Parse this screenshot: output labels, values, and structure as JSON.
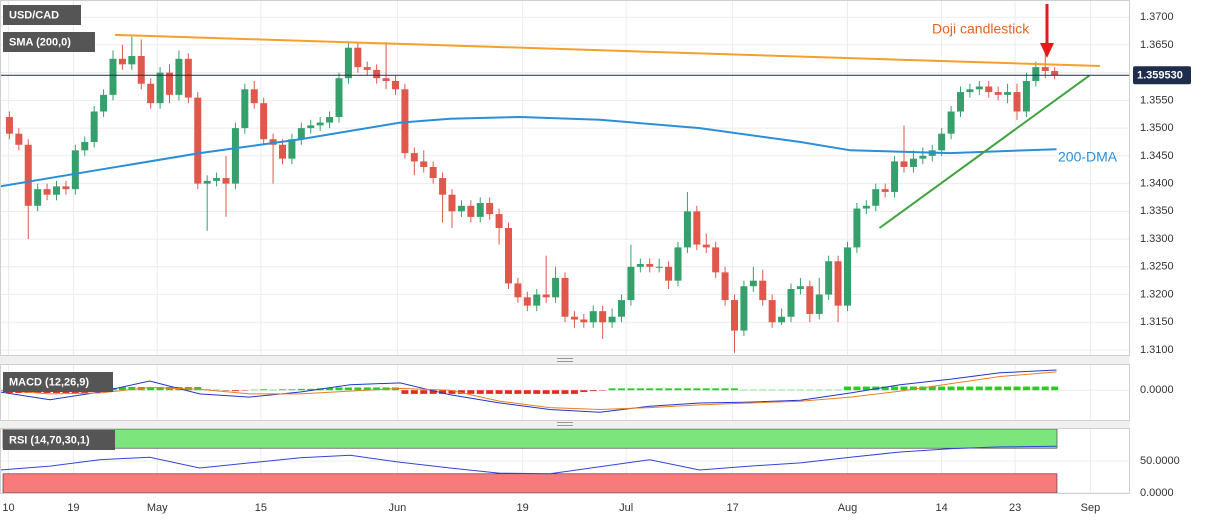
{
  "chart_data": [
    {
      "type": "candlestick",
      "title": "USD/CAD",
      "grid": true,
      "up_color": "#35a06c",
      "down_color": "#e0574b",
      "xlim": [
        -1,
        119
      ],
      "ylim": [
        1.3091,
        1.3731
      ],
      "xticks": [
        {
          "value": -0.1,
          "label": "10"
        },
        {
          "value": 6.8,
          "label": "19"
        },
        {
          "value": 15.7,
          "label": "May"
        },
        {
          "value": 26.7,
          "label": "15"
        },
        {
          "value": 41.2,
          "label": "Jun"
        },
        {
          "value": 54.5,
          "label": "19"
        },
        {
          "value": 65.5,
          "label": "Jul"
        },
        {
          "value": 76.8,
          "label": "17"
        },
        {
          "value": 89,
          "label": "Aug"
        },
        {
          "value": 99,
          "label": "14"
        },
        {
          "value": 106.8,
          "label": "23"
        },
        {
          "value": 114.8,
          "label": "Sep"
        }
      ],
      "yticks": [
        {
          "value": 1.31,
          "label": "1.3100"
        },
        {
          "value": 1.315,
          "label": "1.3150"
        },
        {
          "value": 1.32,
          "label": "1.3200"
        },
        {
          "value": 1.325,
          "label": "1.3250"
        },
        {
          "value": 1.33,
          "label": "1.3300"
        },
        {
          "value": 1.335,
          "label": "1.3350"
        },
        {
          "value": 1.34,
          "label": "1.3400"
        },
        {
          "value": 1.345,
          "label": "1.3450"
        },
        {
          "value": 1.35,
          "label": "1.3500"
        },
        {
          "value": 1.355,
          "label": "1.3550"
        },
        {
          "value": 1.36,
          "label": "1.3600"
        },
        {
          "value": 1.365,
          "label": "1.3650"
        },
        {
          "value": 1.37,
          "label": "1.3700"
        }
      ],
      "open": [
        1.352,
        1.349,
        1.347,
        1.336,
        1.339,
        1.338,
        1.3395,
        1.339,
        1.346,
        1.3475,
        1.353,
        1.356,
        1.3625,
        1.3615,
        1.363,
        1.358,
        1.3545,
        1.36,
        1.356,
        1.3625,
        1.3555,
        1.34,
        1.3405,
        1.341,
        1.34,
        1.35,
        1.357,
        1.3545,
        1.348,
        1.347,
        1.3445,
        1.348,
        1.35,
        1.3505,
        1.351,
        1.352,
        1.359,
        1.3645,
        1.361,
        1.3605,
        1.359,
        1.3585,
        1.357,
        1.3455,
        1.344,
        1.343,
        1.341,
        1.338,
        1.335,
        1.336,
        1.334,
        1.3365,
        1.3345,
        1.332,
        1.322,
        1.3195,
        1.318,
        1.32,
        1.3195,
        1.323,
        1.316,
        1.3155,
        1.315,
        1.317,
        1.315,
        1.316,
        1.319,
        1.325,
        1.3255,
        1.325,
        1.325,
        1.3225,
        1.3285,
        1.335,
        1.329,
        1.3285,
        1.324,
        1.319,
        1.3135,
        1.3215,
        1.3225,
        1.319,
        1.315,
        1.316,
        1.321,
        1.3215,
        1.3165,
        1.32,
        1.326,
        1.318,
        1.3285,
        1.3355,
        1.336,
        1.339,
        1.3385,
        1.344,
        1.343,
        1.3445,
        1.345,
        1.346,
        1.349,
        1.353,
        1.3565,
        1.357,
        1.3575,
        1.3565,
        1.356,
        1.3565,
        1.353,
        1.3585,
        1.361,
        1.3603
      ],
      "high": [
        1.353,
        1.35,
        1.348,
        1.34,
        1.34,
        1.3405,
        1.3405,
        1.347,
        1.3485,
        1.354,
        1.357,
        1.364,
        1.365,
        1.3665,
        1.366,
        1.359,
        1.361,
        1.3615,
        1.364,
        1.3635,
        1.3565,
        1.3415,
        1.342,
        1.345,
        1.351,
        1.358,
        1.3585,
        1.3555,
        1.349,
        1.348,
        1.349,
        1.351,
        1.3515,
        1.352,
        1.353,
        1.36,
        1.3655,
        1.3655,
        1.362,
        1.3615,
        1.3655,
        1.3595,
        1.358,
        1.3465,
        1.346,
        1.344,
        1.342,
        1.339,
        1.337,
        1.337,
        1.3375,
        1.3375,
        1.3355,
        1.333,
        1.323,
        1.3205,
        1.321,
        1.327,
        1.325,
        1.324,
        1.317,
        1.3165,
        1.318,
        1.318,
        1.3175,
        1.32,
        1.329,
        1.3265,
        1.3265,
        1.3265,
        1.326,
        1.3295,
        1.3385,
        1.336,
        1.331,
        1.3295,
        1.325,
        1.32,
        1.3225,
        1.325,
        1.3245,
        1.32,
        1.3175,
        1.322,
        1.323,
        1.3225,
        1.323,
        1.327,
        1.327,
        1.3295,
        1.3365,
        1.337,
        1.34,
        1.34,
        1.345,
        1.3505,
        1.346,
        1.3465,
        1.347,
        1.35,
        1.354,
        1.3575,
        1.358,
        1.3585,
        1.3585,
        1.3575,
        1.358,
        1.358,
        1.36,
        1.362,
        1.364,
        1.361
      ],
      "low": [
        1.348,
        1.346,
        1.33,
        1.335,
        1.337,
        1.337,
        1.338,
        1.338,
        1.345,
        1.3465,
        1.352,
        1.355,
        1.3605,
        1.3605,
        1.357,
        1.3535,
        1.3535,
        1.3545,
        1.355,
        1.3545,
        1.339,
        1.3315,
        1.3395,
        1.334,
        1.339,
        1.349,
        1.3535,
        1.347,
        1.34,
        1.3435,
        1.3435,
        1.347,
        1.349,
        1.3495,
        1.35,
        1.351,
        1.358,
        1.36,
        1.3595,
        1.358,
        1.357,
        1.356,
        1.3445,
        1.3415,
        1.342,
        1.34,
        1.333,
        1.332,
        1.334,
        1.333,
        1.333,
        1.3335,
        1.329,
        1.321,
        1.3185,
        1.317,
        1.317,
        1.3185,
        1.3185,
        1.315,
        1.314,
        1.314,
        1.314,
        1.312,
        1.314,
        1.315,
        1.318,
        1.324,
        1.324,
        1.324,
        1.321,
        1.3215,
        1.3275,
        1.328,
        1.3275,
        1.323,
        1.318,
        1.3095,
        1.3125,
        1.3205,
        1.318,
        1.314,
        1.3145,
        1.315,
        1.32,
        1.315,
        1.3155,
        1.319,
        1.315,
        1.317,
        1.3275,
        1.3345,
        1.335,
        1.3375,
        1.3375,
        1.342,
        1.342,
        1.3435,
        1.344,
        1.345,
        1.348,
        1.352,
        1.3555,
        1.356,
        1.3555,
        1.355,
        1.3545,
        1.3515,
        1.352,
        1.3575,
        1.359,
        1.3588
      ],
      "close": [
        1.349,
        1.347,
        1.336,
        1.339,
        1.338,
        1.3395,
        1.339,
        1.346,
        1.3475,
        1.353,
        1.356,
        1.3625,
        1.3615,
        1.363,
        1.358,
        1.3545,
        1.36,
        1.356,
        1.3625,
        1.3555,
        1.34,
        1.3405,
        1.341,
        1.34,
        1.35,
        1.357,
        1.3545,
        1.348,
        1.347,
        1.3445,
        1.348,
        1.35,
        1.3505,
        1.351,
        1.352,
        1.359,
        1.3645,
        1.361,
        1.3605,
        1.359,
        1.3585,
        1.357,
        1.3455,
        1.344,
        1.343,
        1.341,
        1.338,
        1.335,
        1.336,
        1.334,
        1.3365,
        1.3345,
        1.332,
        1.322,
        1.3195,
        1.318,
        1.32,
        1.3195,
        1.323,
        1.316,
        1.3155,
        1.315,
        1.317,
        1.315,
        1.316,
        1.319,
        1.325,
        1.3255,
        1.325,
        1.325,
        1.3225,
        1.3285,
        1.335,
        1.329,
        1.3285,
        1.324,
        1.319,
        1.3135,
        1.3215,
        1.3225,
        1.319,
        1.315,
        1.316,
        1.321,
        1.3215,
        1.3165,
        1.32,
        1.326,
        1.318,
        1.3285,
        1.3355,
        1.336,
        1.339,
        1.3385,
        1.344,
        1.343,
        1.3445,
        1.345,
        1.346,
        1.349,
        1.353,
        1.3565,
        1.357,
        1.3575,
        1.3565,
        1.356,
        1.3565,
        1.353,
        1.3585,
        1.361,
        1.3603,
        1.35953
      ],
      "overlay": {
        "name": "SMA (200,0)",
        "color": "#2a8fd8",
        "x": [
          -1,
          9.6,
          20.2,
          30.9,
          41.5,
          46.8,
          54.2,
          62.7,
          73.3,
          84,
          89.3,
          99.9,
          111.2
        ],
        "values": [
          1.3395,
          1.3425,
          1.3455,
          1.348,
          1.351,
          1.3517,
          1.352,
          1.3515,
          1.35,
          1.3475,
          1.346,
          1.3455,
          1.3462
        ]
      },
      "trendlines": [
        {
          "color": "#f5a02a",
          "x": [
            11.2,
            115.8
          ],
          "values": [
            1.3668,
            1.3612
          ]
        },
        {
          "color": "#3fa33f",
          "x": [
            92.4,
            114.7
          ],
          "values": [
            1.332,
            1.3595
          ]
        }
      ],
      "last_price": {
        "value": 1.35953,
        "label": "1.359530"
      },
      "annotations": [
        "Doji candlestick",
        "200-DMA"
      ]
    },
    {
      "type": "macd",
      "title": "MACD (12,26,9)",
      "grid": true,
      "xlim": [
        -1,
        119
      ],
      "ylim": [
        -0.0065,
        0.0055
      ],
      "yticks": [
        {
          "value": 0,
          "label": "0.0000"
        }
      ],
      "up_color": "#22d022",
      "down_color": "#e52a1e",
      "histogram": [
        -0.0006,
        -0.0006,
        -0.0006,
        -0.0006,
        -0.0006,
        -0.0006,
        -0.0006,
        -0.0006,
        -0.0006,
        -0.0002,
        0.0002,
        0.0005,
        0.0007,
        0.0007,
        0.0007,
        0.0007,
        0.0007,
        0.0007,
        0.0007,
        0.0007,
        0.0007,
        0.0002,
        0.0001,
        -0.0001,
        -0.0002,
        -0.0001,
        0.0001,
        0.0002,
        0.0001,
        0.0002,
        0.0002,
        0.0003,
        0.0003,
        0.0004,
        0.0005,
        0.0006,
        0.0006,
        0.0006,
        0.0006,
        0.0006,
        0.0006,
        0.0006,
        -0.0008,
        -0.0008,
        -0.0008,
        -0.0008,
        -0.0008,
        -0.0008,
        -0.0008,
        -0.0008,
        -0.0008,
        -0.0008,
        -0.0008,
        -0.0008,
        -0.0008,
        -0.0008,
        -0.0008,
        -0.0008,
        -0.0008,
        -0.0008,
        -0.0008,
        -0.0004,
        -0.0002,
        -0.0001,
        0.0004,
        0.0004,
        0.0004,
        0.0004,
        0.0004,
        0.0004,
        0.0004,
        0.0004,
        0.0004,
        0.0004,
        0.0004,
        0.0004,
        0.0004,
        0.0004,
        0.0001,
        0.0001,
        0.0001,
        0.0001,
        0.0001,
        0.0001,
        0.0001,
        0.0001,
        0.0001,
        0.0001,
        0.0001,
        0.0008,
        0.0008,
        0.0008,
        0.0008,
        0.0008,
        0.0008,
        0.0008,
        0.0008,
        0.0008,
        0.0008,
        0.0008,
        0.0008,
        0.0008,
        0.0008,
        0.0008,
        0.0008,
        0.0008,
        0.0008,
        0.0008,
        0.0008,
        0.0008,
        0.0008,
        0.0008
      ],
      "series": [
        {
          "color": "#2336c8",
          "x": [
            -1,
            4.3,
            9.6,
            14.9,
            20.2,
            25.5,
            30.9,
            36.2,
            41.5,
            46.8,
            52.1,
            57.4,
            62.7,
            68,
            73.3,
            78.6,
            84,
            89.3,
            94.6,
            99.9,
            105.2,
            111.2
          ],
          "values": [
            -0.0004,
            -0.0021,
            -0.0004,
            0.002,
            -0.0008,
            -0.0015,
            -0.0004,
            0.0012,
            0.0016,
            -0.001,
            -0.0028,
            -0.0042,
            -0.0048,
            -0.0035,
            -0.0028,
            -0.0026,
            -0.0022,
            -0.0006,
            0.0012,
            0.0024,
            0.0038,
            0.0044
          ]
        },
        {
          "color": "#ef7d22",
          "x": [
            -1,
            4.3,
            9.6,
            14.9,
            20.2,
            25.5,
            30.9,
            36.2,
            41.5,
            46.8,
            52.1,
            57.4,
            62.7,
            68,
            73.3,
            78.6,
            84,
            89.3,
            94.6,
            99.9,
            105.2,
            111.2
          ],
          "values": [
            0.0,
            -0.0008,
            -0.0006,
            0.0006,
            0.0002,
            -0.0008,
            -0.0008,
            -0.0002,
            0.0004,
            0.0,
            -0.0024,
            -0.0038,
            -0.0042,
            -0.0038,
            -0.0032,
            -0.0028,
            -0.0024,
            -0.0015,
            -0.0002,
            0.0014,
            0.003,
            0.004
          ]
        }
      ]
    },
    {
      "type": "line",
      "title": "RSI (14,70,30,1)",
      "grid": true,
      "xlim": [
        -1,
        119
      ],
      "ylim": [
        0,
        100
      ],
      "yticks": [
        {
          "value": 50,
          "label": "50.0000"
        },
        {
          "value": 0,
          "label": "0.0000"
        }
      ],
      "bands": [
        {
          "from": 70,
          "to": 100,
          "color": "#7ce67c"
        },
        {
          "from": 0,
          "to": 30,
          "color": "#f77b7b"
        }
      ],
      "series": [
        {
          "color": "#3344dd",
          "x": [
            -1,
            4.3,
            9.6,
            14.9,
            20.2,
            25.5,
            30.9,
            36.2,
            41.5,
            46.8,
            52.1,
            57.4,
            62.7,
            68,
            73.3,
            78.6,
            84,
            89.3,
            94.6,
            99.9,
            105.2,
            111.2
          ],
          "values": [
            36,
            42,
            52,
            56,
            39,
            47,
            55,
            59,
            48,
            39,
            31,
            30,
            41,
            52,
            36,
            42,
            47,
            56,
            64,
            69,
            72,
            73
          ]
        }
      ]
    }
  ]
}
